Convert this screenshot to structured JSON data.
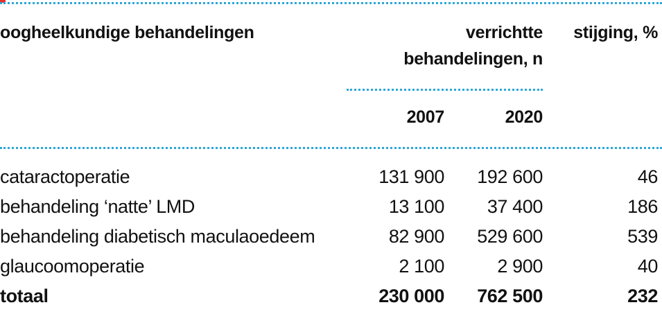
{
  "colors": {
    "accent_dots": "#2aa7d9",
    "corner_mark": "#e8302c",
    "text": "#111111"
  },
  "header": {
    "label": "oogheelkundige behandelingen",
    "count_group_line1": "verrichtte",
    "count_group_line2": "behandelingen, n",
    "increase": "stijging, %",
    "year1": "2007",
    "year2": "2020"
  },
  "rows": [
    {
      "label": "cataractoperatie",
      "v2007": "131 900",
      "v2020": "192 600",
      "pct": "46"
    },
    {
      "label": "behandeling ‘natte’ LMD",
      "v2007": "13 100",
      "v2020": "37 400",
      "pct": "186"
    },
    {
      "label": "behandeling diabetisch maculaoedeem",
      "v2007": "82 900",
      "v2020": "529 600",
      "pct": "539"
    },
    {
      "label": "glaucoomoperatie",
      "v2007": "2 100",
      "v2020": "2 900",
      "pct": "40"
    }
  ],
  "total": {
    "label": "totaal",
    "v2007": "230 000",
    "v2020": "762 500",
    "pct": "232"
  }
}
